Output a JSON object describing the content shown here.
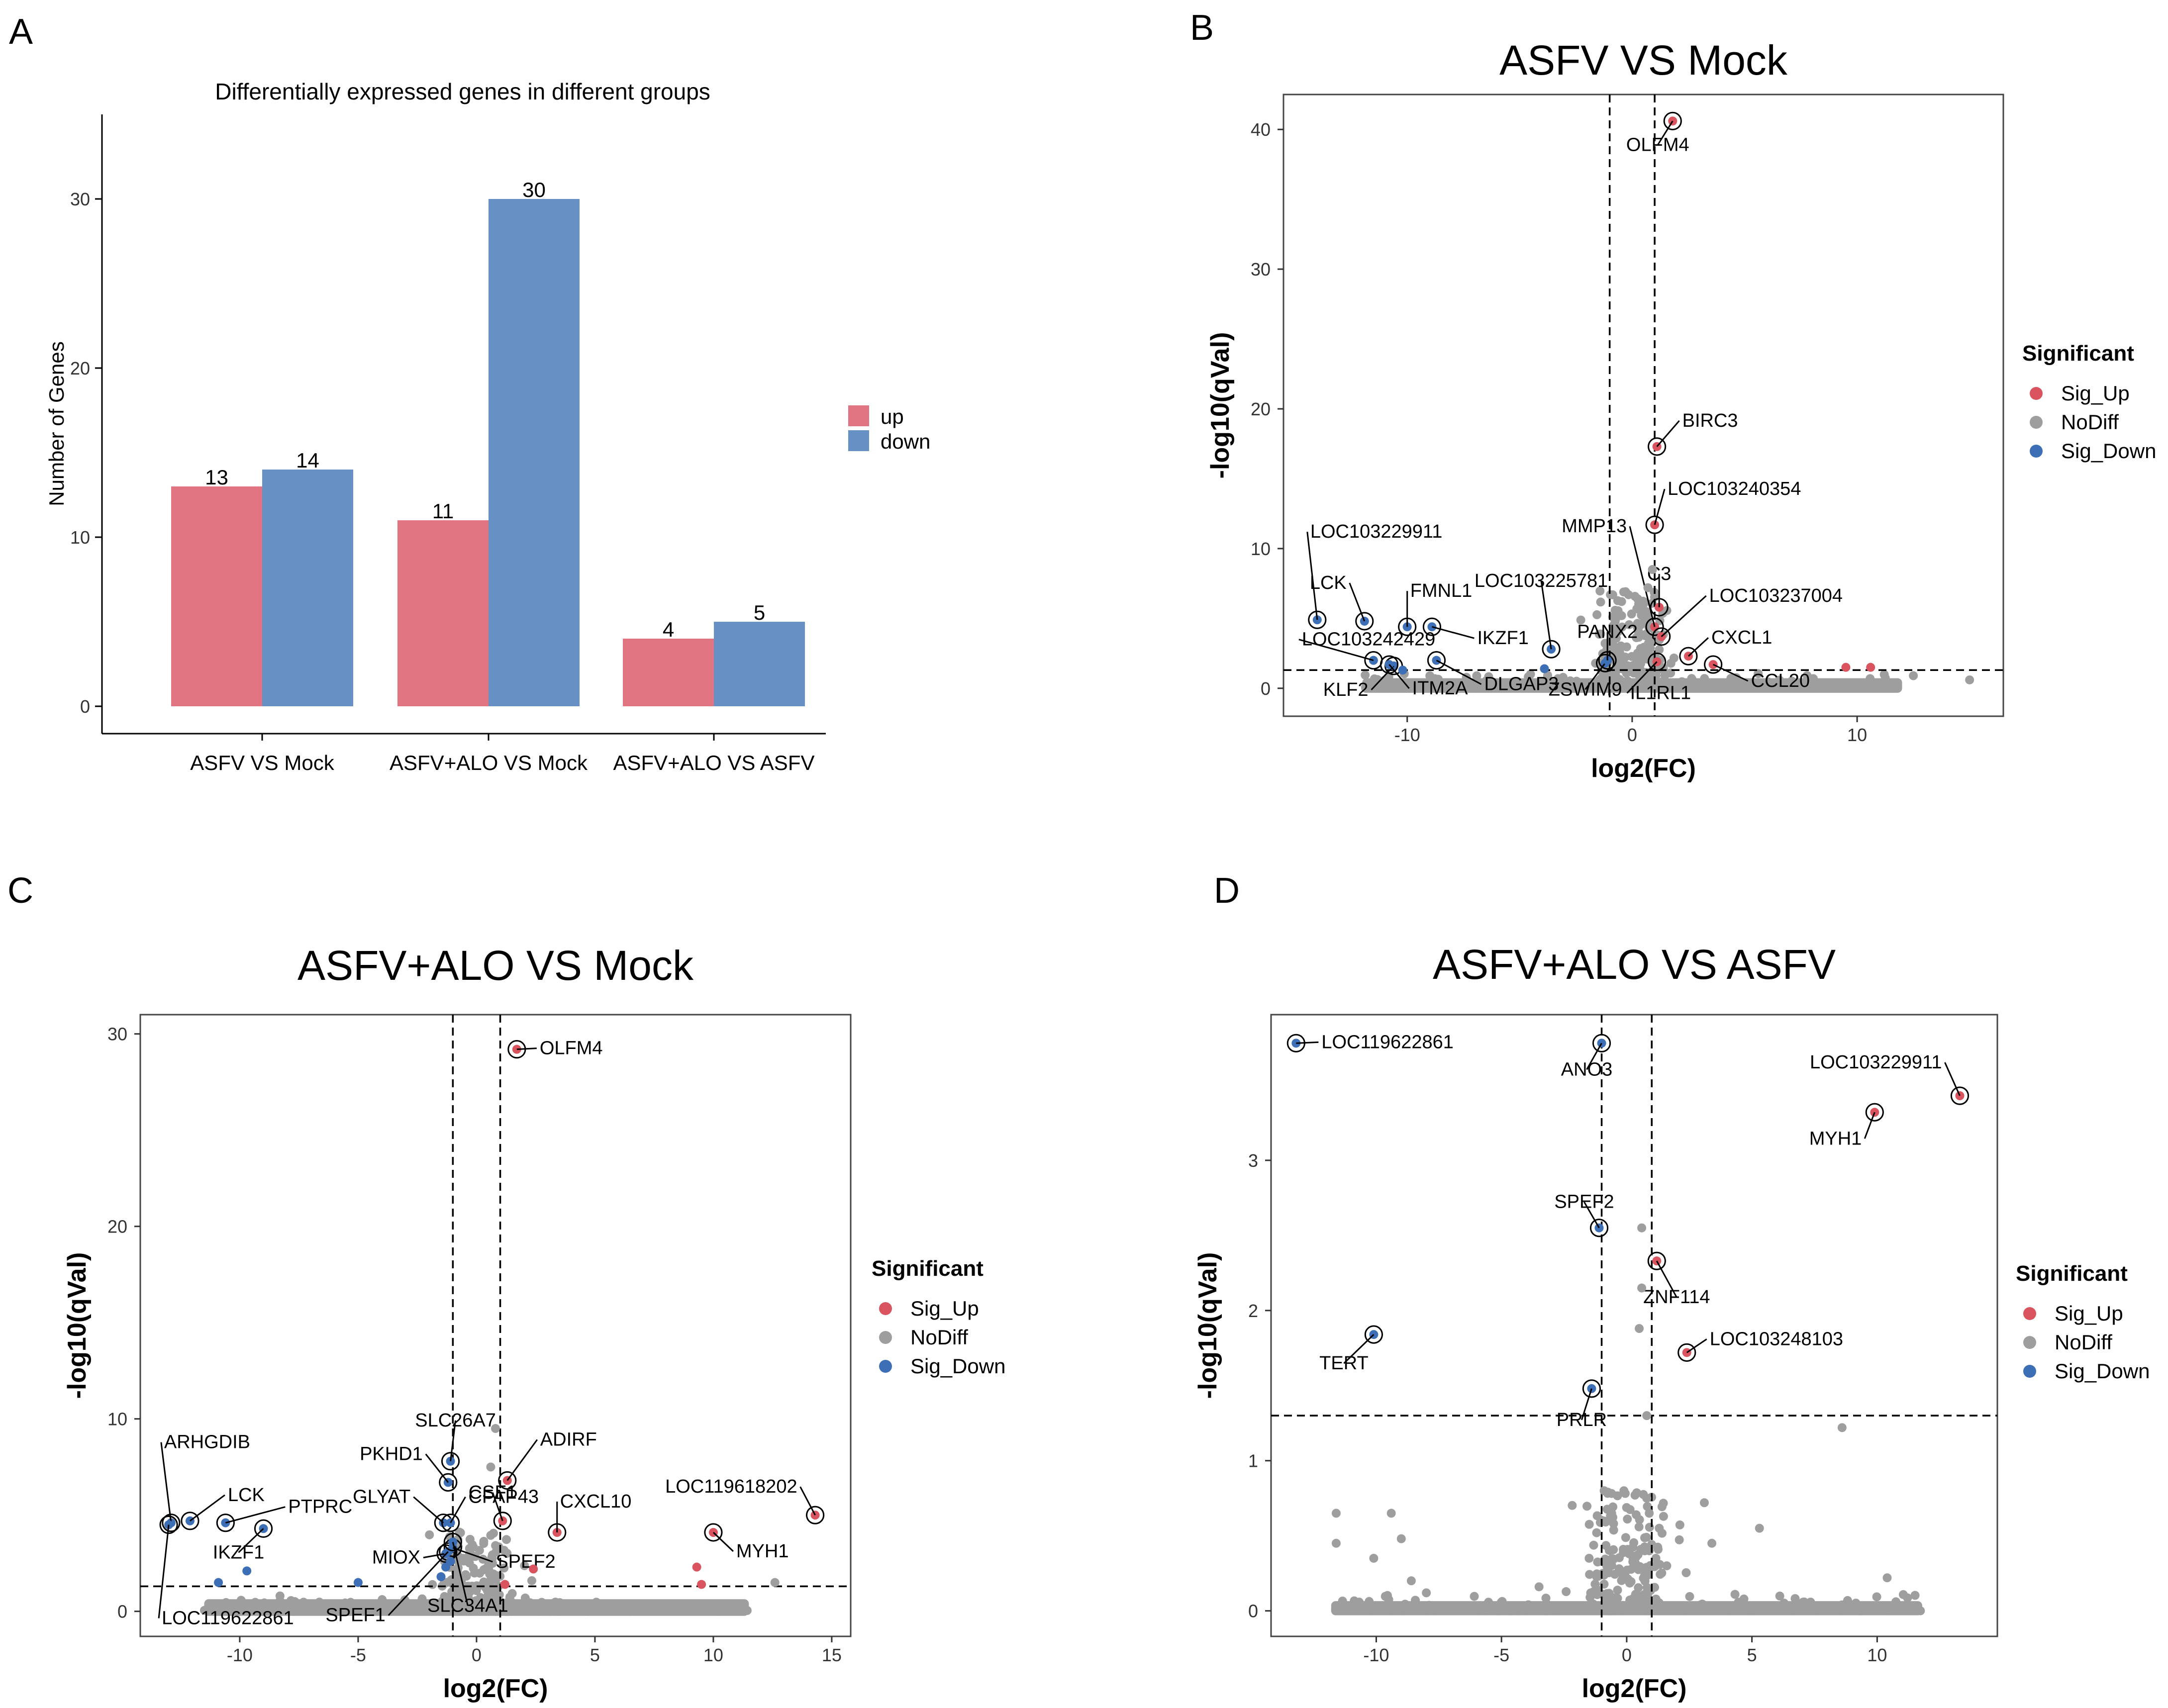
{
  "panels": {
    "A": "A",
    "B": "B",
    "C": "C",
    "D": "D"
  },
  "colors": {
    "up": "#E07480",
    "down": "#6790C4",
    "sig_up": "#D9545F",
    "nodiff": "#9E9E9E",
    "sig_down": "#3D6FB6"
  },
  "legend": {
    "title": "Significant",
    "items": [
      "Sig_Up",
      "NoDiff",
      "Sig_Down"
    ]
  },
  "chart_data": [
    {
      "id": "A",
      "type": "bar",
      "title": "Differentially expressed genes in different groups",
      "xlabel": "",
      "ylabel": "Number of Genes",
      "categories": [
        "ASFV VS Mock",
        "ASFV+ALO VS Mock",
        "ASFV+ALO VS ASFV"
      ],
      "series": [
        {
          "name": "up",
          "values": [
            13,
            11,
            4
          ]
        },
        {
          "name": "down",
          "values": [
            14,
            30,
            5
          ]
        }
      ],
      "ylim": [
        0,
        35
      ],
      "yticks": [
        0,
        10,
        20,
        30
      ],
      "legend": [
        "up",
        "down"
      ]
    },
    {
      "id": "B",
      "type": "scatter",
      "title": "ASFV VS Mock",
      "xlabel": "log2(FC)",
      "ylabel": "-log10(qVal)",
      "xlim": [
        -15.5,
        16.5
      ],
      "ylim": [
        -2,
        42.5
      ],
      "xticks": [
        -10,
        0,
        10
      ],
      "yticks": [
        0,
        10,
        20,
        30,
        40
      ],
      "vlines": [
        -1,
        1
      ],
      "hline": 1.3,
      "points": [
        {
          "x": 1.8,
          "y": 40.6,
          "s": "up",
          "label": "OLFM4"
        },
        {
          "x": 1.1,
          "y": 17.3,
          "s": "up",
          "label": "BIRC3"
        },
        {
          "x": 1.0,
          "y": 11.7,
          "s": "up",
          "label": "LOC103240354"
        },
        {
          "x": 1.0,
          "y": 4.4,
          "s": "up",
          "label": "MMP13"
        },
        {
          "x": 1.2,
          "y": 5.8,
          "s": "up",
          "label": "C3"
        },
        {
          "x": 1.3,
          "y": 3.7,
          "s": "up",
          "label": "LOC103237004"
        },
        {
          "x": 2.5,
          "y": 2.3,
          "s": "up",
          "label": "CXCL1"
        },
        {
          "x": 3.6,
          "y": 1.7,
          "s": "up",
          "label": "CCL20"
        },
        {
          "x": 1.1,
          "y": 1.9,
          "s": "up",
          "label": "IL1RL1"
        },
        {
          "x": -14.0,
          "y": 4.9,
          "s": "down",
          "label": "LOC103229911"
        },
        {
          "x": -11.9,
          "y": 4.8,
          "s": "down",
          "label": "LCK"
        },
        {
          "x": -10.0,
          "y": 4.4,
          "s": "down",
          "label": "FMNL1"
        },
        {
          "x": -8.9,
          "y": 4.4,
          "s": "down",
          "label": "IKZF1"
        },
        {
          "x": -3.6,
          "y": 2.8,
          "s": "down",
          "label": "LOC103225781"
        },
        {
          "x": -11.5,
          "y": 2.0,
          "s": "down",
          "label": "LOC103242429"
        },
        {
          "x": -10.6,
          "y": 1.6,
          "s": "down",
          "label": "KLF2"
        },
        {
          "x": -10.8,
          "y": 1.7,
          "s": "down",
          "label": "ITM2A"
        },
        {
          "x": -8.7,
          "y": 2.0,
          "s": "down",
          "label": "DLGAP3"
        },
        {
          "x": -1.2,
          "y": 1.8,
          "s": "down",
          "label": "ZSWIM9"
        },
        {
          "x": -1.1,
          "y": 2.0,
          "s": "down",
          "label": "PANX2"
        },
        {
          "x": 9.5,
          "y": 1.5,
          "s": "up",
          "label": ""
        },
        {
          "x": 10.6,
          "y": 1.5,
          "s": "up",
          "label": ""
        },
        {
          "x": -3.9,
          "y": 1.4,
          "s": "down",
          "label": ""
        },
        {
          "x": -10.2,
          "y": 1.3,
          "s": "down",
          "label": ""
        },
        {
          "x": 0.9,
          "y": 8.5,
          "s": "nodiff",
          "label": ""
        },
        {
          "x": 0.6,
          "y": 5.5,
          "s": "nodiff",
          "label": ""
        },
        {
          "x": 0.7,
          "y": 7.2,
          "s": "nodiff",
          "label": ""
        },
        {
          "x": 0.8,
          "y": 3.3,
          "s": "nodiff",
          "label": ""
        },
        {
          "x": 15.0,
          "y": 0.6,
          "s": "nodiff",
          "label": ""
        },
        {
          "x": 12.5,
          "y": 0.9,
          "s": "nodiff",
          "label": ""
        }
      ]
    },
    {
      "id": "C",
      "type": "scatter",
      "title": "ASFV+ALO VS Mock",
      "xlabel": "log2(FC)",
      "ylabel": "-log10(qVal)",
      "xlim": [
        -14.2,
        15.8
      ],
      "ylim": [
        -1.3,
        31
      ],
      "xticks": [
        -10,
        -5,
        0,
        5,
        10,
        15
      ],
      "yticks": [
        0,
        10,
        20,
        30
      ],
      "vlines": [
        -1,
        1
      ],
      "hline": 1.3,
      "points": [
        {
          "x": 1.7,
          "y": 29.2,
          "s": "up",
          "label": "OLFM4"
        },
        {
          "x": 1.3,
          "y": 6.8,
          "s": "up",
          "label": "ADIRF"
        },
        {
          "x": 1.1,
          "y": 4.7,
          "s": "up",
          "label": "CSF1"
        },
        {
          "x": 3.4,
          "y": 4.1,
          "s": "up",
          "label": "CXCL10"
        },
        {
          "x": 14.3,
          "y": 5.0,
          "s": "up",
          "label": "LOC119618202"
        },
        {
          "x": 10.0,
          "y": 4.1,
          "s": "up",
          "label": "MYH1"
        },
        {
          "x": -1.1,
          "y": 7.8,
          "s": "down",
          "label": "SLC26A7"
        },
        {
          "x": -1.2,
          "y": 6.7,
          "s": "down",
          "label": "PKHD1"
        },
        {
          "x": -12.9,
          "y": 4.6,
          "s": "down",
          "label": "ARHGDIB"
        },
        {
          "x": -12.1,
          "y": 4.7,
          "s": "down",
          "label": "LCK"
        },
        {
          "x": -10.6,
          "y": 4.6,
          "s": "down",
          "label": "PTPRC"
        },
        {
          "x": -9.0,
          "y": 4.3,
          "s": "down",
          "label": "IKZF1"
        },
        {
          "x": -1.4,
          "y": 4.6,
          "s": "down",
          "label": "GLYAT"
        },
        {
          "x": -1.1,
          "y": 4.6,
          "s": "down",
          "label": "CFAP43"
        },
        {
          "x": -1.3,
          "y": 3.0,
          "s": "down",
          "label": "MIOX"
        },
        {
          "x": -1.0,
          "y": 3.3,
          "s": "down",
          "label": "SPEF2"
        },
        {
          "x": -1.2,
          "y": 3.1,
          "s": "down",
          "label": "SPEF1"
        },
        {
          "x": -1.0,
          "y": 3.6,
          "s": "down",
          "label": "SLC34A1"
        },
        {
          "x": -13.0,
          "y": 4.5,
          "s": "down",
          "label": "LOC119622861"
        },
        {
          "x": 9.3,
          "y": 2.3,
          "s": "up",
          "label": ""
        },
        {
          "x": 9.5,
          "y": 1.4,
          "s": "up",
          "label": ""
        },
        {
          "x": 2.4,
          "y": 2.2,
          "s": "up",
          "label": ""
        },
        {
          "x": 1.2,
          "y": 1.4,
          "s": "up",
          "label": ""
        },
        {
          "x": -9.7,
          "y": 2.1,
          "s": "down",
          "label": ""
        },
        {
          "x": -10.9,
          "y": 1.5,
          "s": "down",
          "label": ""
        },
        {
          "x": -5.0,
          "y": 1.5,
          "s": "down",
          "label": ""
        },
        {
          "x": -1.5,
          "y": 1.8,
          "s": "down",
          "label": ""
        },
        {
          "x": -1.3,
          "y": 2.3,
          "s": "down",
          "label": ""
        },
        {
          "x": -1.1,
          "y": 2.6,
          "s": "down",
          "label": ""
        },
        {
          "x": 0.8,
          "y": 9.5,
          "s": "nodiff",
          "label": ""
        },
        {
          "x": 0.6,
          "y": 7.5,
          "s": "nodiff",
          "label": ""
        },
        {
          "x": 12.6,
          "y": 1.5,
          "s": "nodiff",
          "label": ""
        },
        {
          "x": -8.3,
          "y": 0.8,
          "s": "nodiff",
          "label": ""
        }
      ]
    },
    {
      "id": "D",
      "type": "scatter",
      "title": "ASFV+ALO VS ASFV",
      "xlabel": "log2(FC)",
      "ylabel": "-log10(qVal)",
      "xlim": [
        -14.2,
        14.8
      ],
      "ylim": [
        -0.17,
        3.97
      ],
      "xticks": [
        -10,
        -5,
        0,
        5,
        10
      ],
      "yticks": [
        0,
        1,
        2,
        3
      ],
      "vlines": [
        -1,
        1
      ],
      "hline": 1.3,
      "points": [
        {
          "x": -13.2,
          "y": 3.78,
          "s": "down",
          "label": "LOC119622861"
        },
        {
          "x": -1.0,
          "y": 3.78,
          "s": "down",
          "label": "ANO3"
        },
        {
          "x": 13.3,
          "y": 3.43,
          "s": "up",
          "label": "LOC103229911"
        },
        {
          "x": 9.9,
          "y": 3.32,
          "s": "up",
          "label": "MYH1"
        },
        {
          "x": -1.1,
          "y": 2.55,
          "s": "down",
          "label": "SPEF2"
        },
        {
          "x": 1.2,
          "y": 2.33,
          "s": "up",
          "label": "ZNF114"
        },
        {
          "x": 2.4,
          "y": 1.72,
          "s": "up",
          "label": "LOC103248103"
        },
        {
          "x": -10.1,
          "y": 1.84,
          "s": "down",
          "label": "TERT"
        },
        {
          "x": -1.4,
          "y": 1.48,
          "s": "down",
          "label": "PRLR"
        },
        {
          "x": 0.6,
          "y": 2.55,
          "s": "nodiff",
          "label": ""
        },
        {
          "x": 0.6,
          "y": 2.15,
          "s": "nodiff",
          "label": ""
        },
        {
          "x": 0.5,
          "y": 1.88,
          "s": "nodiff",
          "label": ""
        },
        {
          "x": 0.8,
          "y": 1.3,
          "s": "nodiff",
          "label": ""
        },
        {
          "x": 8.6,
          "y": 1.22,
          "s": "nodiff",
          "label": ""
        },
        {
          "x": 10.4,
          "y": 0.22,
          "s": "nodiff",
          "label": ""
        },
        {
          "x": 5.3,
          "y": 0.55,
          "s": "nodiff",
          "label": ""
        },
        {
          "x": 3.1,
          "y": 0.72,
          "s": "nodiff",
          "label": ""
        },
        {
          "x": -11.6,
          "y": 0.65,
          "s": "nodiff",
          "label": ""
        },
        {
          "x": -9.4,
          "y": 0.65,
          "s": "nodiff",
          "label": ""
        },
        {
          "x": -11.6,
          "y": 0.45,
          "s": "nodiff",
          "label": ""
        },
        {
          "x": -9.0,
          "y": 0.48,
          "s": "nodiff",
          "label": ""
        },
        {
          "x": -10.1,
          "y": 0.35,
          "s": "nodiff",
          "label": ""
        },
        {
          "x": -8.6,
          "y": 0.2,
          "s": "nodiff",
          "label": ""
        },
        {
          "x": -8.0,
          "y": 0.12,
          "s": "nodiff",
          "label": ""
        },
        {
          "x": -3.5,
          "y": 0.16,
          "s": "nodiff",
          "label": ""
        },
        {
          "x": 3.4,
          "y": 0.45,
          "s": "nodiff",
          "label": ""
        },
        {
          "x": -0.9,
          "y": 0.8,
          "s": "nodiff",
          "label": ""
        },
        {
          "x": 0.8,
          "y": 0.75,
          "s": "nodiff",
          "label": ""
        },
        {
          "x": -1.2,
          "y": 0.52,
          "s": "nodiff",
          "label": ""
        },
        {
          "x": 1.3,
          "y": 0.55,
          "s": "nodiff",
          "label": ""
        },
        {
          "x": -1.5,
          "y": 0.35,
          "s": "nodiff",
          "label": ""
        },
        {
          "x": 1.6,
          "y": 0.3,
          "s": "nodiff",
          "label": ""
        },
        {
          "x": -0.6,
          "y": 0.65,
          "s": "nodiff",
          "label": ""
        },
        {
          "x": 0.9,
          "y": 0.65,
          "s": "nodiff",
          "label": ""
        }
      ]
    }
  ]
}
